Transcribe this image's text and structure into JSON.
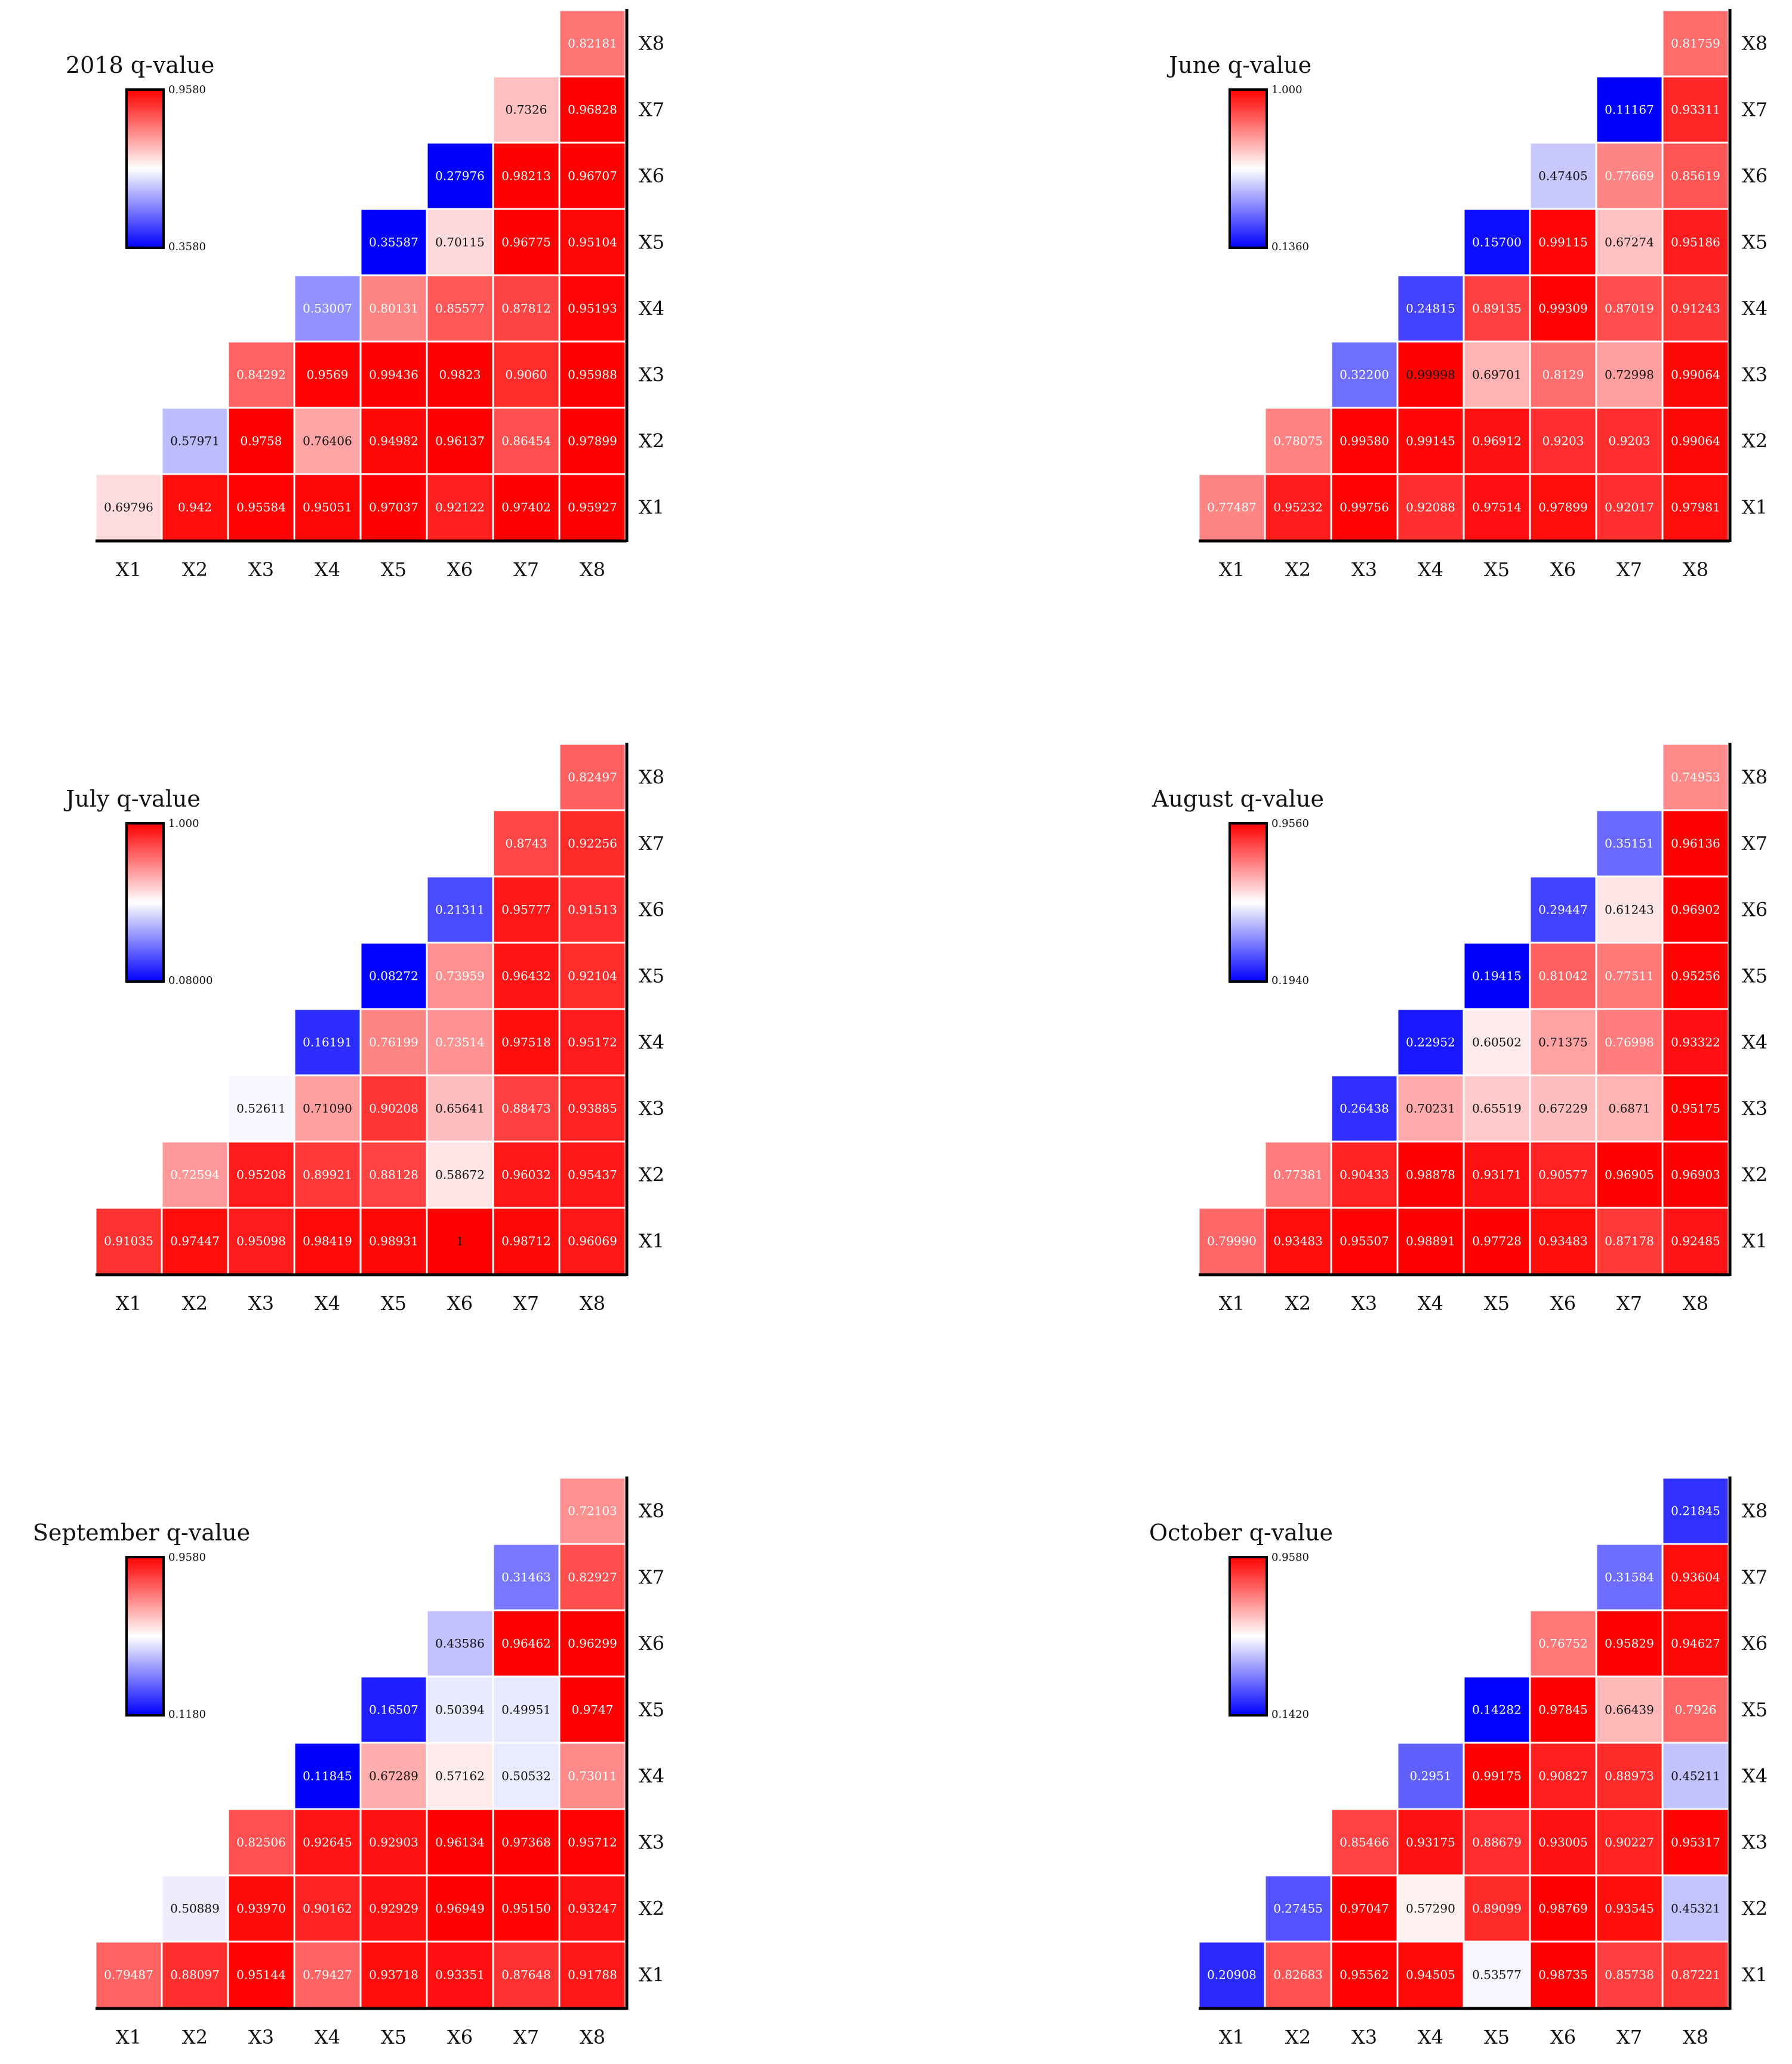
{
  "chart_data": [
    {
      "type": "heatmap",
      "title": "2018 q-value",
      "colorbar": {
        "max_label": "0.9580",
        "min_label": "0.3580",
        "min": 0.358,
        "max": 0.958
      },
      "x_labels": [
        "X1",
        "X2",
        "X3",
        "X4",
        "X5",
        "X6",
        "X7",
        "X8"
      ],
      "y_labels": [
        "X1",
        "X2",
        "X3",
        "X4",
        "X5",
        "X6",
        "X7",
        "X8"
      ],
      "rows": [
        [
          "0.69796",
          "0.942",
          "0.95584",
          "0.95051",
          "0.97037",
          "0.92122",
          "0.97402",
          "0.95927"
        ],
        [
          "0.57971",
          "0.9758",
          "0.76406",
          "0.94982",
          "0.96137",
          "0.86454",
          "0.97899"
        ],
        [
          "0.84292",
          "0.9569",
          "0.99436",
          "0.9823",
          "0.9060",
          "0.95988"
        ],
        [
          "0.53007",
          "0.80131",
          "0.85577",
          "0.87812",
          "0.95193"
        ],
        [
          "0.35587",
          "0.70115",
          "0.96775",
          "0.95104"
        ],
        [
          "0.27976",
          "0.98213",
          "0.96707"
        ],
        [
          "0.7326",
          "0.96828"
        ],
        [
          "0.82181"
        ]
      ],
      "values": [
        [
          0.69796,
          0.942,
          0.95584,
          0.95051,
          0.97037,
          0.92122,
          0.97402,
          0.95927
        ],
        [
          0.57971,
          0.9758,
          0.76406,
          0.94982,
          0.96137,
          0.86454,
          0.97899
        ],
        [
          0.84292,
          0.9569,
          0.99436,
          0.9823,
          0.906,
          0.95988
        ],
        [
          0.53007,
          0.80131,
          0.85577,
          0.87812,
          0.95193
        ],
        [
          0.35587,
          0.70115,
          0.96775,
          0.95104
        ],
        [
          0.27976,
          0.98213,
          0.96707
        ],
        [
          0.7326,
          0.96828
        ],
        [
          0.82181
        ]
      ]
    },
    {
      "type": "heatmap",
      "title": "June q-value",
      "colorbar": {
        "max_label": "1.000",
        "min_label": "0.1360",
        "min": 0.136,
        "max": 1.0
      },
      "x_labels": [
        "X1",
        "X2",
        "X3",
        "X4",
        "X5",
        "X6",
        "X7",
        "X8"
      ],
      "y_labels": [
        "X1",
        "X2",
        "X3",
        "X4",
        "X5",
        "X6",
        "X7",
        "X8"
      ],
      "rows": [
        [
          "0.77487",
          "0.95232",
          "0.99756",
          "0.92088",
          "0.97514",
          "0.97899",
          "0.92017",
          "0.97981"
        ],
        [
          "0.78075",
          "0.99580",
          "0.99145",
          "0.96912",
          "0.9203",
          "0.9203",
          "0.99064"
        ],
        [
          "0.32200",
          "0.99998",
          "0.69701",
          "0.8129",
          "0.72998",
          "0.99064"
        ],
        [
          "0.24815",
          "0.89135",
          "0.99309",
          "0.87019",
          "0.91243"
        ],
        [
          "0.15700",
          "0.99115",
          "0.67274",
          "0.95186"
        ],
        [
          "0.47405",
          "0.77669",
          "0.85619"
        ],
        [
          "0.11167",
          "0.93311"
        ],
        [
          "0.81759"
        ]
      ],
      "values": [
        [
          0.77487,
          0.95232,
          0.99756,
          0.92088,
          0.97514,
          0.97899,
          0.92017,
          0.97981
        ],
        [
          0.78075,
          0.9958,
          0.99145,
          0.96912,
          0.9203,
          0.9203,
          0.99064
        ],
        [
          0.322,
          0.99998,
          0.69701,
          0.8129,
          0.72998,
          0.99064
        ],
        [
          0.24815,
          0.89135,
          0.99309,
          0.87019,
          0.91243
        ],
        [
          0.157,
          0.99115,
          0.67274,
          0.95186
        ],
        [
          0.47405,
          0.77669,
          0.85619
        ],
        [
          0.11167,
          0.93311
        ],
        [
          0.81759
        ]
      ]
    },
    {
      "type": "heatmap",
      "title": "July q-value",
      "colorbar": {
        "max_label": "1.000",
        "min_label": "0.08000",
        "min": 0.08,
        "max": 1.0
      },
      "x_labels": [
        "X1",
        "X2",
        "X3",
        "X4",
        "X5",
        "X6",
        "X7",
        "X8"
      ],
      "y_labels": [
        "X1",
        "X2",
        "X3",
        "X4",
        "X5",
        "X6",
        "X7",
        "X8"
      ],
      "rows": [
        [
          "0.91035",
          "0.97447",
          "0.95098",
          "0.98419",
          "0.98931",
          "1",
          "0.98712",
          "0.96069"
        ],
        [
          "0.72594",
          "0.95208",
          "0.89921",
          "0.88128",
          "0.58672",
          "0.96032",
          "0.95437"
        ],
        [
          "0.52611",
          "0.71090",
          "0.90208",
          "0.65641",
          "0.88473",
          "0.93885"
        ],
        [
          "0.16191",
          "0.76199",
          "0.73514",
          "0.97518",
          "0.95172"
        ],
        [
          "0.08272",
          "0.73959",
          "0.96432",
          "0.92104"
        ],
        [
          "0.21311",
          "0.95777",
          "0.91513"
        ],
        [
          "0.8743",
          "0.92256"
        ],
        [
          "0.82497"
        ]
      ],
      "values": [
        [
          0.91035,
          0.97447,
          0.95098,
          0.98419,
          0.98931,
          1.0,
          0.98712,
          0.96069
        ],
        [
          0.72594,
          0.95208,
          0.89921,
          0.88128,
          0.58672,
          0.96032,
          0.95437
        ],
        [
          0.52611,
          0.7109,
          0.90208,
          0.65641,
          0.88473,
          0.93885
        ],
        [
          0.16191,
          0.76199,
          0.73514,
          0.97518,
          0.95172
        ],
        [
          0.08272,
          0.73959,
          0.96432,
          0.92104
        ],
        [
          0.21311,
          0.95777,
          0.91513
        ],
        [
          0.8743,
          0.92256
        ],
        [
          0.82497
        ]
      ]
    },
    {
      "type": "heatmap",
      "title": "August q-value",
      "colorbar": {
        "max_label": "0.9560",
        "min_label": "0.1940",
        "min": 0.194,
        "max": 0.956
      },
      "x_labels": [
        "X1",
        "X2",
        "X3",
        "X4",
        "X5",
        "X6",
        "X7",
        "X8"
      ],
      "y_labels": [
        "X1",
        "X2",
        "X3",
        "X4",
        "X5",
        "X6",
        "X7",
        "X8"
      ],
      "rows": [
        [
          "0.79990",
          "0.93483",
          "0.95507",
          "0.98891",
          "0.97728",
          "0.93483",
          "0.87178",
          "0.92485"
        ],
        [
          "0.77381",
          "0.90433",
          "0.98878",
          "0.93171",
          "0.90577",
          "0.96905",
          "0.96903"
        ],
        [
          "0.26438",
          "0.70231",
          "0.65519",
          "0.67229",
          "0.6871",
          "0.95175"
        ],
        [
          "0.22952",
          "0.60502",
          "0.71375",
          "0.76998",
          "0.93322"
        ],
        [
          "0.19415",
          "0.81042",
          "0.77511",
          "0.95256"
        ],
        [
          "0.29447",
          "0.61243",
          "0.96902"
        ],
        [
          "0.35151",
          "0.96136"
        ],
        [
          "0.74953"
        ]
      ],
      "values": [
        [
          0.7999,
          0.93483,
          0.95507,
          0.98891,
          0.97728,
          0.93483,
          0.87178,
          0.92485
        ],
        [
          0.77381,
          0.90433,
          0.98878,
          0.93171,
          0.90577,
          0.96905,
          0.96903
        ],
        [
          0.26438,
          0.70231,
          0.65519,
          0.67229,
          0.6871,
          0.95175
        ],
        [
          0.22952,
          0.60502,
          0.71375,
          0.76998,
          0.93322
        ],
        [
          0.19415,
          0.81042,
          0.77511,
          0.95256
        ],
        [
          0.29447,
          0.61243,
          0.96902
        ],
        [
          0.35151,
          0.96136
        ],
        [
          0.74953
        ]
      ]
    },
    {
      "type": "heatmap",
      "title": "September q-value",
      "colorbar": {
        "max_label": "0.9580",
        "min_label": "0.1180",
        "min": 0.118,
        "max": 0.958
      },
      "x_labels": [
        "X1",
        "X2",
        "X3",
        "X4",
        "X5",
        "X6",
        "X7",
        "X8"
      ],
      "y_labels": [
        "X1",
        "X2",
        "X3",
        "X4",
        "X5",
        "X6",
        "X7",
        "X8"
      ],
      "rows": [
        [
          "0.79487",
          "0.88097",
          "0.95144",
          "0.79427",
          "0.93718",
          "0.93351",
          "0.87648",
          "0.91788"
        ],
        [
          "0.50889",
          "0.93970",
          "0.90162",
          "0.92929",
          "0.96949",
          "0.95150",
          "0.93247"
        ],
        [
          "0.82506",
          "0.92645",
          "0.92903",
          "0.96134",
          "0.97368",
          "0.95712"
        ],
        [
          "0.11845",
          "0.67289",
          "0.57162",
          "0.50532",
          "0.73011"
        ],
        [
          "0.16507",
          "0.50394",
          "0.49951",
          "0.9747"
        ],
        [
          "0.43586",
          "0.96462",
          "0.96299"
        ],
        [
          "0.31463",
          "0.82927"
        ],
        [
          "0.72103"
        ]
      ],
      "values": [
        [
          0.79487,
          0.88097,
          0.95144,
          0.79427,
          0.93718,
          0.93351,
          0.87648,
          0.91788
        ],
        [
          0.50889,
          0.9397,
          0.90162,
          0.92929,
          0.96949,
          0.9515,
          0.93247
        ],
        [
          0.82506,
          0.92645,
          0.92903,
          0.96134,
          0.97368,
          0.95712
        ],
        [
          0.11845,
          0.67289,
          0.57162,
          0.50532,
          0.73011
        ],
        [
          0.16507,
          0.50394,
          0.49951,
          0.9747
        ],
        [
          0.43586,
          0.96462,
          0.96299
        ],
        [
          0.31463,
          0.82927
        ],
        [
          0.72103
        ]
      ]
    },
    {
      "type": "heatmap",
      "title": "October q-value",
      "colorbar": {
        "max_label": "0.9580",
        "min_label": "0.1420",
        "min": 0.142,
        "max": 0.958
      },
      "x_labels": [
        "X1",
        "X2",
        "X3",
        "X4",
        "X5",
        "X6",
        "X7",
        "X8"
      ],
      "y_labels": [
        "X1",
        "X2",
        "X3",
        "X4",
        "X5",
        "X6",
        "X7",
        "X8"
      ],
      "rows": [
        [
          "0.20908",
          "0.82683",
          "0.95562",
          "0.94505",
          "0.53577",
          "0.98735",
          "0.85738",
          "0.87221"
        ],
        [
          "0.27455",
          "0.97047",
          "0.57290",
          "0.89099",
          "0.98769",
          "0.93545",
          "0.45321"
        ],
        [
          "0.85466",
          "0.93175",
          "0.88679",
          "0.93005",
          "0.90227",
          "0.95317"
        ],
        [
          "0.2951",
          "0.99175",
          "0.90827",
          "0.88973",
          "0.45211"
        ],
        [
          "0.14282",
          "0.97845",
          "0.66439",
          "0.7926"
        ],
        [
          "0.76752",
          "0.95829",
          "0.94627"
        ],
        [
          "0.31584",
          "0.93604"
        ],
        [
          "0.21845"
        ]
      ],
      "values": [
        [
          0.20908,
          0.82683,
          0.95562,
          0.94505,
          0.53577,
          0.98735,
          0.85738,
          0.87221
        ],
        [
          0.27455,
          0.97047,
          0.5729,
          0.89099,
          0.98769,
          0.93545,
          0.45321
        ],
        [
          0.85466,
          0.93175,
          0.88679,
          0.93005,
          0.90227,
          0.95317
        ],
        [
          0.2951,
          0.99175,
          0.90827,
          0.88973,
          0.45211
        ],
        [
          0.14282,
          0.97845,
          0.66439,
          0.7926
        ],
        [
          0.76752,
          0.95829,
          0.94627
        ],
        [
          0.31584,
          0.93604
        ],
        [
          0.21845
        ]
      ]
    }
  ],
  "colors": {
    "high": "#ff0000",
    "mid": "#ffffff",
    "low": "#0000ff",
    "axis": "#000000"
  }
}
